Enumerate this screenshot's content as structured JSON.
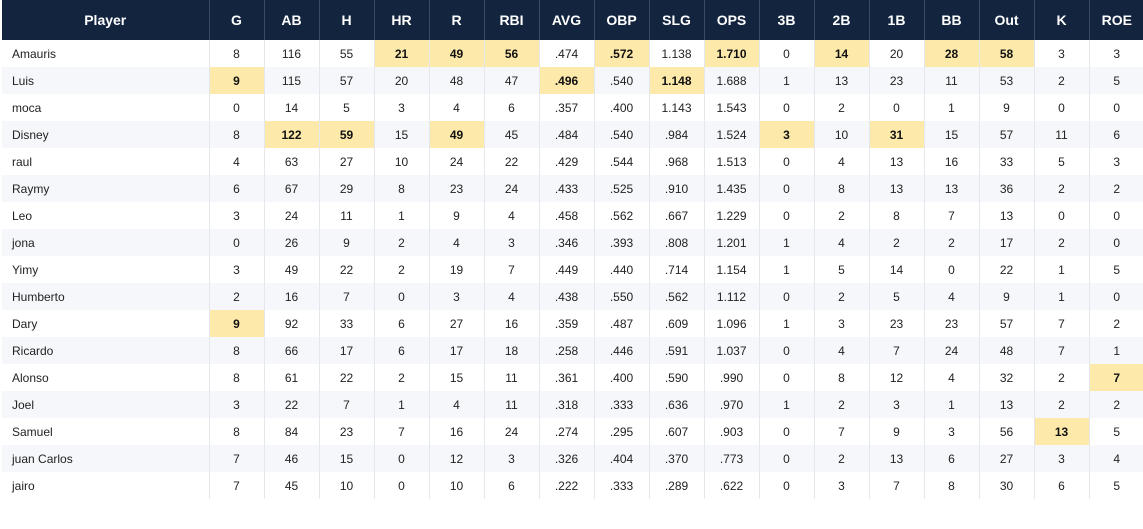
{
  "columns": [
    "Player",
    "G",
    "AB",
    "H",
    "HR",
    "R",
    "RBI",
    "AVG",
    "OBP",
    "SLG",
    "OPS",
    "3B",
    "2B",
    "1B",
    "BB",
    "Out",
    "K",
    "ROE"
  ],
  "highlight_color": "#fde9aa",
  "header_color": "#13243f",
  "rows": [
    {
      "cells": [
        "Amauris",
        "8",
        "116",
        "55",
        "21",
        "49",
        "56",
        ".474",
        ".572",
        "1.138",
        "1.710",
        "0",
        "14",
        "20",
        "28",
        "58",
        "3",
        "3"
      ],
      "highlight": [
        4,
        5,
        6,
        8,
        10,
        12,
        14,
        15
      ]
    },
    {
      "cells": [
        "Luis",
        "9",
        "115",
        "57",
        "20",
        "48",
        "47",
        ".496",
        ".540",
        "1.148",
        "1.688",
        "1",
        "13",
        "23",
        "11",
        "53",
        "2",
        "5"
      ],
      "highlight": [
        1,
        7,
        9
      ]
    },
    {
      "cells": [
        "moca",
        "0",
        "14",
        "5",
        "3",
        "4",
        "6",
        ".357",
        ".400",
        "1.143",
        "1.543",
        "0",
        "2",
        "0",
        "1",
        "9",
        "0",
        "0"
      ],
      "highlight": []
    },
    {
      "cells": [
        "Disney",
        "8",
        "122",
        "59",
        "15",
        "49",
        "45",
        ".484",
        ".540",
        ".984",
        "1.524",
        "3",
        "10",
        "31",
        "15",
        "57",
        "11",
        "6"
      ],
      "highlight": [
        2,
        3,
        5,
        11,
        13
      ]
    },
    {
      "cells": [
        "raul",
        "4",
        "63",
        "27",
        "10",
        "24",
        "22",
        ".429",
        ".544",
        ".968",
        "1.513",
        "0",
        "4",
        "13",
        "16",
        "33",
        "5",
        "3"
      ],
      "highlight": []
    },
    {
      "cells": [
        "Raymy",
        "6",
        "67",
        "29",
        "8",
        "23",
        "24",
        ".433",
        ".525",
        ".910",
        "1.435",
        "0",
        "8",
        "13",
        "13",
        "36",
        "2",
        "2"
      ],
      "highlight": []
    },
    {
      "cells": [
        "Leo",
        "3",
        "24",
        "11",
        "1",
        "9",
        "4",
        ".458",
        ".562",
        ".667",
        "1.229",
        "0",
        "2",
        "8",
        "7",
        "13",
        "0",
        "0"
      ],
      "highlight": []
    },
    {
      "cells": [
        "jona",
        "0",
        "26",
        "9",
        "2",
        "4",
        "3",
        ".346",
        ".393",
        ".808",
        "1.201",
        "1",
        "4",
        "2",
        "2",
        "17",
        "2",
        "0"
      ],
      "highlight": []
    },
    {
      "cells": [
        "Yimy",
        "3",
        "49",
        "22",
        "2",
        "19",
        "7",
        ".449",
        ".440",
        ".714",
        "1.154",
        "1",
        "5",
        "14",
        "0",
        "22",
        "1",
        "5"
      ],
      "highlight": []
    },
    {
      "cells": [
        "Humberto",
        "2",
        "16",
        "7",
        "0",
        "3",
        "4",
        ".438",
        ".550",
        ".562",
        "1.112",
        "0",
        "2",
        "5",
        "4",
        "9",
        "1",
        "0"
      ],
      "highlight": []
    },
    {
      "cells": [
        "Dary",
        "9",
        "92",
        "33",
        "6",
        "27",
        "16",
        ".359",
        ".487",
        ".609",
        "1.096",
        "1",
        "3",
        "23",
        "23",
        "57",
        "7",
        "2"
      ],
      "highlight": [
        1
      ]
    },
    {
      "cells": [
        "Ricardo",
        "8",
        "66",
        "17",
        "6",
        "17",
        "18",
        ".258",
        ".446",
        ".591",
        "1.037",
        "0",
        "4",
        "7",
        "24",
        "48",
        "7",
        "1"
      ],
      "highlight": []
    },
    {
      "cells": [
        "Alonso",
        "8",
        "61",
        "22",
        "2",
        "15",
        "11",
        ".361",
        ".400",
        ".590",
        ".990",
        "0",
        "8",
        "12",
        "4",
        "32",
        "2",
        "7"
      ],
      "highlight": [
        17
      ]
    },
    {
      "cells": [
        "Joel",
        "3",
        "22",
        "7",
        "1",
        "4",
        "11",
        ".318",
        ".333",
        ".636",
        ".970",
        "1",
        "2",
        "3",
        "1",
        "13",
        "2",
        "2"
      ],
      "highlight": []
    },
    {
      "cells": [
        "Samuel",
        "8",
        "84",
        "23",
        "7",
        "16",
        "24",
        ".274",
        ".295",
        ".607",
        ".903",
        "0",
        "7",
        "9",
        "3",
        "56",
        "13",
        "5"
      ],
      "highlight": [
        16
      ]
    },
    {
      "cells": [
        "juan Carlos",
        "7",
        "46",
        "15",
        "0",
        "12",
        "3",
        ".326",
        ".404",
        ".370",
        ".773",
        "0",
        "2",
        "13",
        "6",
        "27",
        "3",
        "4"
      ],
      "highlight": []
    },
    {
      "cells": [
        "jairo",
        "7",
        "45",
        "10",
        "0",
        "10",
        "6",
        ".222",
        ".333",
        ".289",
        ".622",
        "0",
        "3",
        "7",
        "8",
        "30",
        "6",
        "5"
      ],
      "highlight": []
    }
  ]
}
